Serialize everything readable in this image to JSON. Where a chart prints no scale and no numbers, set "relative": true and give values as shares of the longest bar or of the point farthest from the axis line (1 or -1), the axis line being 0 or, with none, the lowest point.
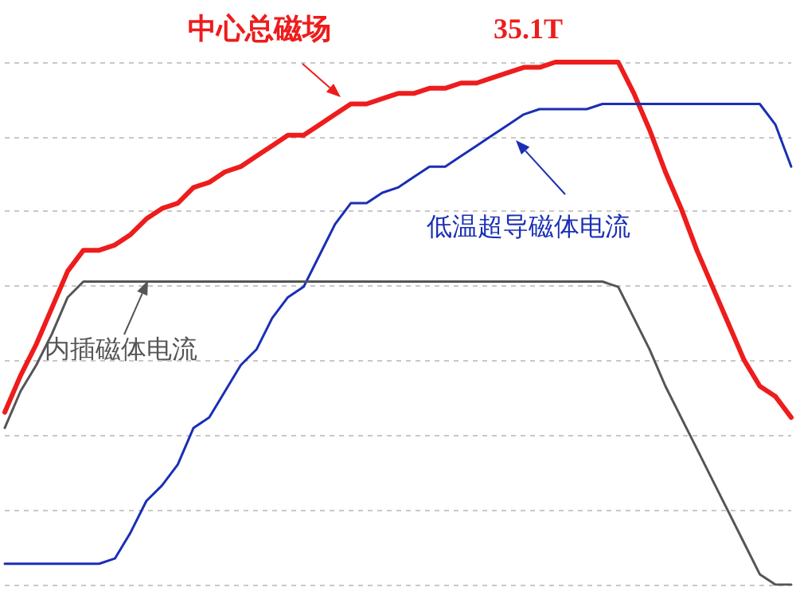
{
  "chart_data": {
    "type": "line",
    "relative": true,
    "grid": "y",
    "legend": "top",
    "marker": "none",
    "line_style": "solid",
    "categories": [
      null,
      null,
      null,
      null,
      null,
      null,
      null,
      null,
      null,
      null,
      null,
      null,
      null,
      null,
      null,
      null,
      null,
      null,
      null,
      null,
      null,
      null,
      null,
      null,
      null,
      null,
      null,
      null,
      null,
      null,
      null,
      null,
      null,
      null,
      null,
      null,
      null,
      null,
      null,
      null,
      null,
      null,
      null,
      null,
      null,
      null,
      null,
      null,
      null,
      null,
      null
    ],
    "annotations": [
      "35.1T"
    ],
    "series": [
      {
        "name": "中心总磁场",
        "color": "#ee1c1c",
        "values": [
          0.33,
          0.4,
          0.46,
          0.53,
          0.6,
          0.64,
          0.64,
          0.65,
          0.67,
          0.7,
          0.72,
          0.73,
          0.76,
          0.77,
          0.79,
          0.8,
          0.82,
          0.84,
          0.86,
          0.86,
          0.88,
          0.9,
          0.92,
          0.92,
          0.93,
          0.94,
          0.94,
          0.95,
          0.95,
          0.96,
          0.96,
          0.97,
          0.98,
          0.99,
          0.99,
          1,
          1,
          1,
          1,
          1,
          0.94,
          0.87,
          0.79,
          0.72,
          0.64,
          0.57,
          0.5,
          0.43,
          0.38,
          0.36,
          0.32
        ]
      },
      {
        "name": "低温超导磁体电流",
        "color": "#1a2fb5",
        "values": [
          0.04,
          0.04,
          0.04,
          0.04,
          0.04,
          0.04,
          0.04,
          0.05,
          0.1,
          0.16,
          0.19,
          0.23,
          0.3,
          0.32,
          0.37,
          0.42,
          0.45,
          0.51,
          0.55,
          0.57,
          0.63,
          0.69,
          0.73,
          0.73,
          0.75,
          0.76,
          0.78,
          0.8,
          0.8,
          0.82,
          0.84,
          0.86,
          0.88,
          0.9,
          0.91,
          0.91,
          0.91,
          0.91,
          0.92,
          0.92,
          0.92,
          0.92,
          0.92,
          0.92,
          0.92,
          0.92,
          0.92,
          0.92,
          0.92,
          0.88,
          0.8
        ]
      },
      {
        "name": "内插磁体电流",
        "color": "#555555",
        "values": [
          0.3,
          0.37,
          0.42,
          0.48,
          0.55,
          0.58,
          0.58,
          0.58,
          0.58,
          0.58,
          0.58,
          0.58,
          0.58,
          0.58,
          0.58,
          0.58,
          0.58,
          0.58,
          0.58,
          0.58,
          0.58,
          0.58,
          0.58,
          0.58,
          0.58,
          0.58,
          0.58,
          0.58,
          0.58,
          0.58,
          0.58,
          0.58,
          0.58,
          0.58,
          0.58,
          0.58,
          0.58,
          0.58,
          0.58,
          0.57,
          0.51,
          0.45,
          0.38,
          0.32,
          0.26,
          0.2,
          0.14,
          0.08,
          0.02,
          0,
          0
        ]
      }
    ]
  }
}
